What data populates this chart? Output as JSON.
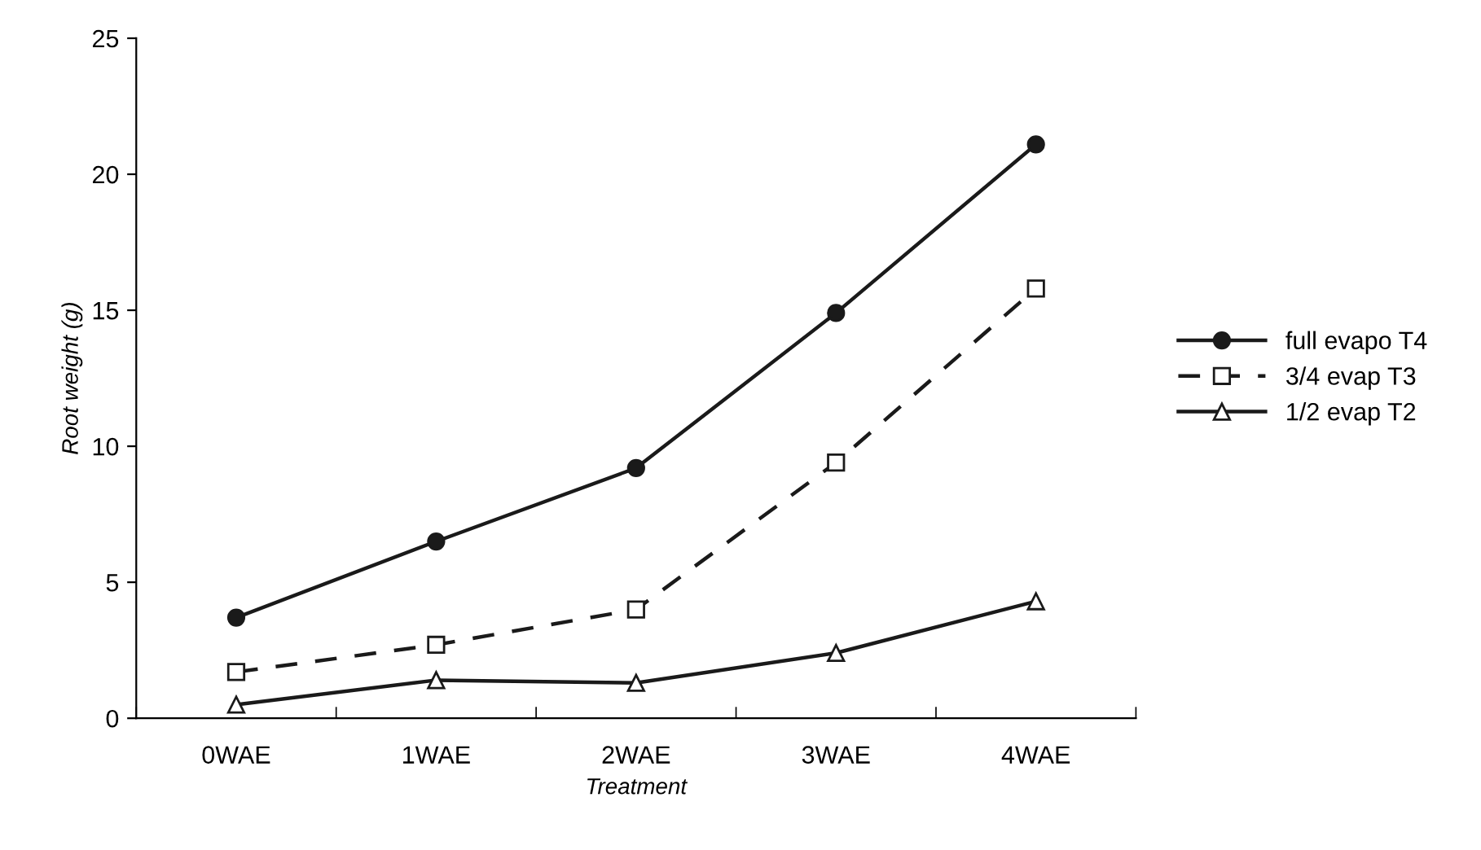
{
  "chart_data": {
    "type": "line",
    "xlabel": "Treatment",
    "ylabel": "Root weight (g)",
    "categories": [
      "0WAE",
      "1WAE",
      "2WAE",
      "3WAE",
      "4WAE"
    ],
    "series": [
      {
        "name": "full evapo T4",
        "color": "#1a1a1a",
        "marker": "circle",
        "line_style": "solid",
        "values": [
          3.7,
          6.5,
          9.2,
          14.9,
          21.1
        ]
      },
      {
        "name": "3/4 evap T3",
        "color": "#1a1a1a",
        "marker": "square",
        "line_style": "dashed",
        "values": [
          1.7,
          2.7,
          4.0,
          9.4,
          15.8
        ]
      },
      {
        "name": "1/2 evap T2",
        "color": "#1a1a1a",
        "marker": "triangle",
        "line_style": "solid",
        "values": [
          0.5,
          1.4,
          1.3,
          2.4,
          4.3
        ]
      }
    ],
    "ylim": [
      0,
      25
    ],
    "yticks": [
      0,
      5,
      10,
      15,
      20,
      25
    ],
    "grid": false,
    "legend": "right"
  }
}
